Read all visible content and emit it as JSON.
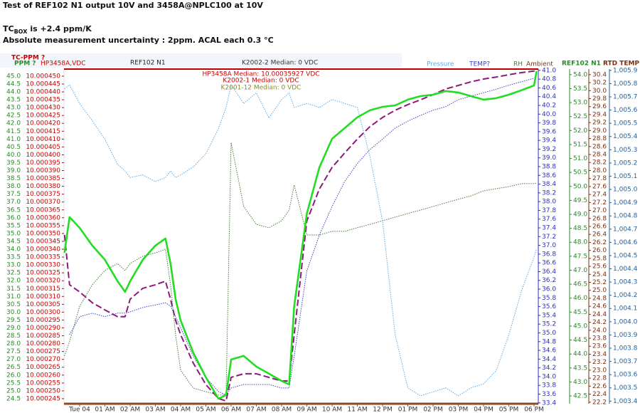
{
  "chart_data": {
    "type": "line",
    "title": "Test of REF102 N1 output 10V and 3458A@NPLC100 at 10V",
    "tc_main": "TC",
    "tc_sub": "BOX",
    "tc_rest": "is +2.4 ppm/K",
    "subtitle": "Absolute measurement uncertainty : 2ppm. ACAL each 0.3 °C",
    "annotations": [
      {
        "text": "K2002-2 Median: 0 VDC",
        "color": "#333333"
      },
      {
        "text": "HP3458A Median: 10.00035927 VDC",
        "color": "#cc0000"
      },
      {
        "text": "K2002-1 Median: 0 VDC",
        "color": "#cc0000"
      },
      {
        "text": "K2001-12 Median: 0 VDC",
        "color": "#8a8a20"
      }
    ],
    "x": [
      -0.6,
      -0.4,
      0,
      0.5,
      1,
      1.5,
      1.8,
      2,
      2.5,
      3,
      3.4,
      3.6,
      3.8,
      4,
      4.5,
      5,
      5.5,
      5.8,
      6,
      6.5,
      7,
      7.5,
      8,
      8.3,
      8.5,
      9,
      9.5,
      10,
      10.5,
      11,
      11.5,
      12,
      12.5,
      13,
      13.5,
      14,
      14.5,
      15,
      15.5,
      16,
      16.5,
      17,
      17.5,
      18,
      18.1
    ],
    "xlim": [
      -0.62,
      18.17
    ],
    "xticks": [
      {
        "value": 0,
        "label": "Tue 04"
      },
      {
        "value": 1,
        "label": "01 AM"
      },
      {
        "value": 2,
        "label": "02 AM"
      },
      {
        "value": 3,
        "label": "03 AM"
      },
      {
        "value": 4,
        "label": "04 AM"
      },
      {
        "value": 5,
        "label": "05 AM"
      },
      {
        "value": 6,
        "label": "06 AM"
      },
      {
        "value": 7,
        "label": "07 AM"
      },
      {
        "value": 8,
        "label": "08 AM"
      },
      {
        "value": 9,
        "label": "09 AM"
      },
      {
        "value": 10,
        "label": "10 AM"
      },
      {
        "value": 11,
        "label": "11 AM"
      },
      {
        "value": 12,
        "label": "12 PM"
      },
      {
        "value": 13,
        "label": "01 PM"
      },
      {
        "value": 14,
        "label": "02 PM"
      },
      {
        "value": 15,
        "label": "03 PM"
      },
      {
        "value": 16,
        "label": "04 PM"
      },
      {
        "value": 17,
        "label": "05 PM"
      },
      {
        "value": 18,
        "label": "06 PM"
      }
    ],
    "axes": {
      "y": {
        "note": "TC-PPM ?",
        "label": "PPM ?",
        "color": "#2a8a2a",
        "lim": [
          24.18,
          45.45
        ],
        "ticks": [
          {
            "value": 45,
            "label": "45.0"
          },
          44.5,
          {
            "value": 44,
            "label": "44.0"
          },
          43.5,
          {
            "value": 43,
            "label": "43.0"
          },
          42.5,
          {
            "value": 42,
            "label": "42.0"
          },
          41.5,
          {
            "value": 41,
            "label": "41.0"
          },
          40.5,
          {
            "value": 40,
            "label": "40.0"
          },
          39.5,
          {
            "value": 39,
            "label": "39.0"
          },
          38.5,
          {
            "value": 38,
            "label": "38.0"
          },
          37.5,
          {
            "value": 37,
            "label": "37.0"
          },
          36.5,
          {
            "value": 36,
            "label": "36.0"
          },
          35.5,
          {
            "value": 35,
            "label": "35.0"
          },
          34.5,
          {
            "value": 34,
            "label": "34.0"
          },
          33.5,
          {
            "value": 33,
            "label": "33.0"
          },
          32.5,
          {
            "value": 32,
            "label": "32.0"
          },
          31.5,
          {
            "value": 31,
            "label": "31.0"
          },
          30.5,
          {
            "value": 30,
            "label": "30.0"
          },
          29.5,
          {
            "value": 29,
            "label": "29.0"
          },
          28.5,
          {
            "value": 28,
            "label": "28.0"
          },
          27.5,
          {
            "value": 27,
            "label": "27.0"
          },
          26.5,
          {
            "value": 26,
            "label": "26.0"
          },
          25.5,
          {
            "value": 25,
            "label": "25.0"
          },
          24.5
        ]
      },
      "y2": {
        "label": "HP3458A,VDC",
        "color": "#cc0000",
        "lim": [
          10.0002418,
          10.0004545
        ],
        "ticks": [
          {
            "value": 10.00045,
            "label": "10.000450"
          },
          10.000445,
          {
            "value": 10.00044,
            "label": "10.000440"
          },
          10.000435,
          {
            "value": 10.00043,
            "label": "10.000430"
          },
          10.000425,
          {
            "value": 10.00042,
            "label": "10.000420"
          },
          10.000415,
          {
            "value": 10.00041,
            "label": "10.000410"
          },
          10.000405,
          {
            "value": 10.0004,
            "label": "10.000400"
          },
          10.000395,
          {
            "value": 10.00039,
            "label": "10.000390"
          },
          10.000385,
          {
            "value": 10.00038,
            "label": "10.000380"
          },
          10.000375,
          {
            "value": 10.00037,
            "label": "10.000370"
          },
          10.000365,
          {
            "value": 10.00036,
            "label": "10.000360"
          },
          10.000355,
          {
            "value": 10.00035,
            "label": "10.000350"
          },
          10.000345,
          {
            "value": 10.00034,
            "label": "10.000340"
          },
          10.000335,
          {
            "value": 10.00033,
            "label": "10.000330"
          },
          10.000325,
          {
            "value": 10.00032,
            "label": "10.000320"
          },
          10.000315,
          {
            "value": 10.00031,
            "label": "10.000310"
          },
          10.000305,
          {
            "value": 10.0003,
            "label": "10.000300"
          },
          10.000295,
          {
            "value": 10.00029,
            "label": "10.000290"
          },
          10.000285,
          {
            "value": 10.00028,
            "label": "10.000280"
          },
          10.000275,
          {
            "value": 10.00027,
            "label": "10.000270"
          },
          10.000265,
          {
            "value": 10.00026,
            "label": "10.000260"
          },
          10.000255,
          {
            "value": 10.00025,
            "label": "10.000250"
          },
          10.000245
        ]
      },
      "y3": {
        "color": "#3030c0",
        "lim": [
          33.38,
          41.03
        ],
        "ticks": [
          {
            "value": 41,
            "label": "41.0"
          },
          40.8,
          40.6,
          40.4,
          40.2,
          {
            "value": 40,
            "label": "40.0"
          },
          39.8,
          39.6,
          39.4,
          39.2,
          {
            "value": 39,
            "label": "39.0"
          },
          38.8,
          38.6,
          38.4,
          38.2,
          {
            "value": 38,
            "label": "38.0"
          },
          37.8,
          37.6,
          37.4,
          37.2,
          {
            "value": 37,
            "label": "37.0"
          },
          36.8,
          36.6,
          36.4,
          36.2,
          {
            "value": 36,
            "label": "36.0"
          },
          35.8,
          35.6,
          35.4,
          35.2,
          {
            "value": 35,
            "label": "35.0"
          },
          34.8,
          34.6,
          34.4,
          34.2,
          {
            "value": 34,
            "label": "34.0"
          },
          33.8,
          33.6,
          33.4
        ]
      },
      "y4": {
        "label": "REF102 N1",
        "color": "#2a8a2a",
        "lim": [
          42.22,
          54.2
        ],
        "ticks": [
          {
            "value": 54,
            "label": "54.0"
          },
          53.5,
          {
            "value": 53,
            "label": "53.0"
          },
          52.5,
          {
            "value": 52,
            "label": "52.0"
          },
          51.5,
          {
            "value": 51,
            "label": "51.0"
          },
          50.5,
          {
            "value": 50,
            "label": "50.0"
          },
          49.5,
          {
            "value": 49,
            "label": "49.0"
          },
          48.5,
          {
            "value": 48,
            "label": "48.0"
          },
          47.5,
          {
            "value": 47,
            "label": "47.0"
          },
          46.5,
          {
            "value": 46,
            "label": "46.0"
          },
          45.5,
          {
            "value": 45,
            "label": "45.0"
          },
          44.5,
          {
            "value": 44,
            "label": "44.0"
          },
          43.5,
          {
            "value": 43,
            "label": "43.0"
          },
          42.5
        ]
      },
      "y5": {
        "label": "RTD TEMP",
        "color": "#7a3010",
        "lim": [
          22.16,
          30.54
        ],
        "ticks": [
          30.4,
          30.2,
          {
            "value": 30,
            "label": "30.0"
          },
          29.8,
          29.6,
          29.4,
          29.2,
          {
            "value": 29,
            "label": "29.0"
          },
          28.8,
          28.6,
          28.4,
          28.2,
          {
            "value": 28,
            "label": "28.0"
          },
          27.8,
          27.6,
          27.4,
          27.2,
          {
            "value": 27,
            "label": "27.0"
          },
          26.8,
          26.6,
          26.4,
          26.2,
          {
            "value": 26,
            "label": "26.0"
          },
          25.8,
          25.6,
          25.4,
          25.2,
          {
            "value": 25,
            "label": "25.0"
          },
          24.8,
          24.6,
          24.4,
          24.2,
          {
            "value": 24,
            "label": "24.0"
          },
          23.8,
          23.6,
          23.4,
          23.2,
          {
            "value": 23,
            "label": "23.0"
          },
          22.8,
          22.6,
          22.4,
          22.2
        ]
      },
      "y6": {
        "color": "#2060a0",
        "lim": [
          1003.38,
          1005.91
        ],
        "ticks": [
          {
            "value": 1005.9,
            "label": "1,005.9"
          },
          {
            "value": 1005.8,
            "label": "1,005.8"
          },
          {
            "value": 1005.7,
            "label": "1,005.7"
          },
          {
            "value": 1005.6,
            "label": "1,005.6"
          },
          {
            "value": 1005.5,
            "label": "1,005.5"
          },
          {
            "value": 1005.4,
            "label": "1,005.4"
          },
          {
            "value": 1005.3,
            "label": "1,005.3"
          },
          {
            "value": 1005.2,
            "label": "1,005.2"
          },
          {
            "value": 1005.1,
            "label": "1,005.1"
          },
          {
            "value": 1005,
            "label": "1,005.0"
          },
          {
            "value": 1004.9,
            "label": "1,004.9"
          },
          {
            "value": 1004.8,
            "label": "1,004.8"
          },
          {
            "value": 1004.7,
            "label": "1,004.7"
          },
          {
            "value": 1004.6,
            "label": "1,004.6"
          },
          {
            "value": 1004.5,
            "label": "1,004.5"
          },
          {
            "value": 1004.4,
            "label": "1,004.4"
          },
          {
            "value": 1004.3,
            "label": "1,004.3"
          },
          {
            "value": 1004.2,
            "label": "1,004.2"
          },
          {
            "value": 1004.1,
            "label": "1,004.1"
          },
          {
            "value": 1004,
            "label": "1,004.0"
          },
          {
            "value": 1003.9,
            "label": "1,003.9"
          },
          {
            "value": 1003.8,
            "label": "1,003.8"
          },
          {
            "value": 1003.7,
            "label": "1,003.7"
          },
          {
            "value": 1003.6,
            "label": "1,003.6"
          },
          {
            "value": 1003.5,
            "label": "1,003.5"
          },
          {
            "value": 1003.4,
            "label": "1,003.4"
          }
        ]
      }
    },
    "series": [
      {
        "name": "REF102 N1",
        "color": "#22dd22",
        "style": "solid",
        "axis": "y2",
        "values": [
          10.0003378,
          10.0003604,
          10.0003536,
          10.0003423,
          10.0003333,
          10.0003197,
          10.0003129,
          10.0003197,
          10.0003333,
          10.0003423,
          10.0003468,
          10.000331,
          10.0003084,
          10.0002948,
          10.0002744,
          10.0002586,
          10.000245,
          10.0002473,
          10.0002699,
          10.0002722,
          10.0002654,
          10.0002609,
          10.0002563,
          10.0002541,
          10.0003038,
          10.0003627,
          10.0003921,
          10.0004102,
          10.000417,
          10.0004238,
          10.0004283,
          10.0004305,
          10.0004314,
          10.0004351,
          10.0004373,
          10.0004382,
          10.0004405,
          10.0004396,
          10.0004373,
          10.0004351,
          10.000436,
          10.0004382,
          10.000441,
          10.0004441,
          10.0004532
        ]
      },
      {
        "name": "Pressure",
        "color": "#5aa9e6",
        "style": "dotted",
        "axis": "y6",
        "values": [
          1005.76,
          1005.79,
          1005.65,
          1005.52,
          1005.38,
          1005.19,
          1005.14,
          1005.09,
          1005.11,
          1005.06,
          1005.09,
          1005.14,
          1005.09,
          1005.11,
          1005.17,
          1005.27,
          1005.46,
          1005.62,
          1005.79,
          1005.65,
          1005.73,
          1005.54,
          1005.68,
          1005.73,
          1005.62,
          1005.65,
          1005.62,
          1005.68,
          1005.65,
          1005.62,
          1005.25,
          1004.76,
          1003.9,
          1003.5,
          1003.44,
          1003.47,
          1003.5,
          1003.44,
          1003.5,
          1003.53,
          1003.63,
          1003.9,
          1004.23,
          1004.49,
          1004.55
        ]
      },
      {
        "name": "TEMP?",
        "color": "#4040c0",
        "style": "dotted",
        "axis": "y3",
        "values": [
          null,
          34.96,
          35.37,
          35.45,
          35.37,
          35.45,
          35.45,
          35.48,
          35.58,
          35.64,
          35.69,
          35.61,
          35.37,
          35.12,
          34.47,
          33.98,
          33.66,
          33.58,
          33.74,
          33.82,
          33.82,
          33.82,
          33.74,
          33.74,
          34.47,
          36.42,
          37.24,
          37.89,
          38.46,
          38.87,
          39.19,
          39.43,
          39.68,
          39.84,
          39.97,
          40.09,
          40.17,
          40.33,
          40.41,
          40.49,
          40.57,
          40.66,
          40.74,
          40.82,
          40.85
        ]
      },
      {
        "name": "RH",
        "color": "#4a7a3a",
        "style": "dotted",
        "axis": "y4",
        "values": [
          43.93,
          44.44,
          45.71,
          46.48,
          46.99,
          47.24,
          46.99,
          47.24,
          47.5,
          47.62,
          47.75,
          46.48,
          44.69,
          43.42,
          42.78,
          42.65,
          42.53,
          42.53,
          51.57,
          49.28,
          48.64,
          48.52,
          48.77,
          49.15,
          50.05,
          48.26,
          48.26,
          48.39,
          48.39,
          48.52,
          48.64,
          48.77,
          48.9,
          49.03,
          49.15,
          49.28,
          49.41,
          49.54,
          49.66,
          49.84,
          49.92,
          49.99,
          50.1,
          50.1,
          50.12
        ]
      },
      {
        "name": "Ambient",
        "color": "#8b1a7b",
        "style": "dashed",
        "axis": "y5",
        "values": [
          26.39,
          25.14,
          24.96,
          24.69,
          24.51,
          24.34,
          24.34,
          24.78,
          25.05,
          25.14,
          25.23,
          24.78,
          24.25,
          23.89,
          23.18,
          22.64,
          22.29,
          22.23,
          22.82,
          22.91,
          22.91,
          22.82,
          22.73,
          22.73,
          23.89,
          26.74,
          27.54,
          28.08,
          28.44,
          28.79,
          29.1,
          29.33,
          29.51,
          29.65,
          29.77,
          29.9,
          30.04,
          30.13,
          30.22,
          30.29,
          30.34,
          30.4,
          30.45,
          30.49,
          30.5
        ]
      }
    ]
  }
}
